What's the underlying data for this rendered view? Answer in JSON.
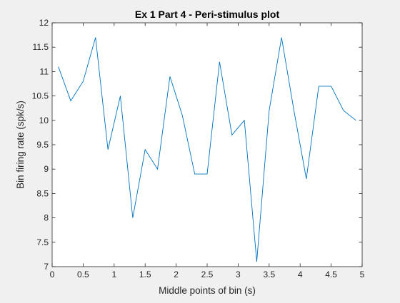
{
  "chart_data": {
    "type": "line",
    "title": "Ex 1 Part 4 - Peri-stimulus plot",
    "xlabel": "Middle points of bin (s)",
    "ylabel": "Bin firing rate (spk/s)",
    "xlim": [
      0,
      5
    ],
    "ylim": [
      7,
      12
    ],
    "xticks": [
      "0",
      "0.5",
      "1",
      "1.5",
      "2",
      "2.5",
      "3",
      "3.5",
      "4",
      "4.5",
      "5"
    ],
    "yticks": [
      "7",
      "7.5",
      "8",
      "8.5",
      "9",
      "9.5",
      "10",
      "10.5",
      "11",
      "11.5",
      "12"
    ],
    "grid": false,
    "line_color": "#0072bd",
    "series": [
      {
        "x": [
          0.1,
          0.3,
          0.5,
          0.7,
          0.9,
          1.1,
          1.3,
          1.5,
          1.7,
          1.9,
          2.1,
          2.3,
          2.5,
          2.7,
          2.9,
          3.1,
          3.3,
          3.5,
          3.7,
          3.9,
          4.1,
          4.3,
          4.5,
          4.7,
          4.9
        ],
        "values": [
          11.1,
          10.4,
          10.8,
          11.7,
          9.4,
          10.5,
          8.0,
          9.4,
          9.0,
          10.9,
          10.1,
          8.9,
          8.9,
          11.2,
          9.7,
          10.0,
          7.1,
          10.2,
          11.7,
          10.2,
          8.8,
          10.7,
          10.7,
          10.2,
          10.0
        ]
      }
    ]
  }
}
